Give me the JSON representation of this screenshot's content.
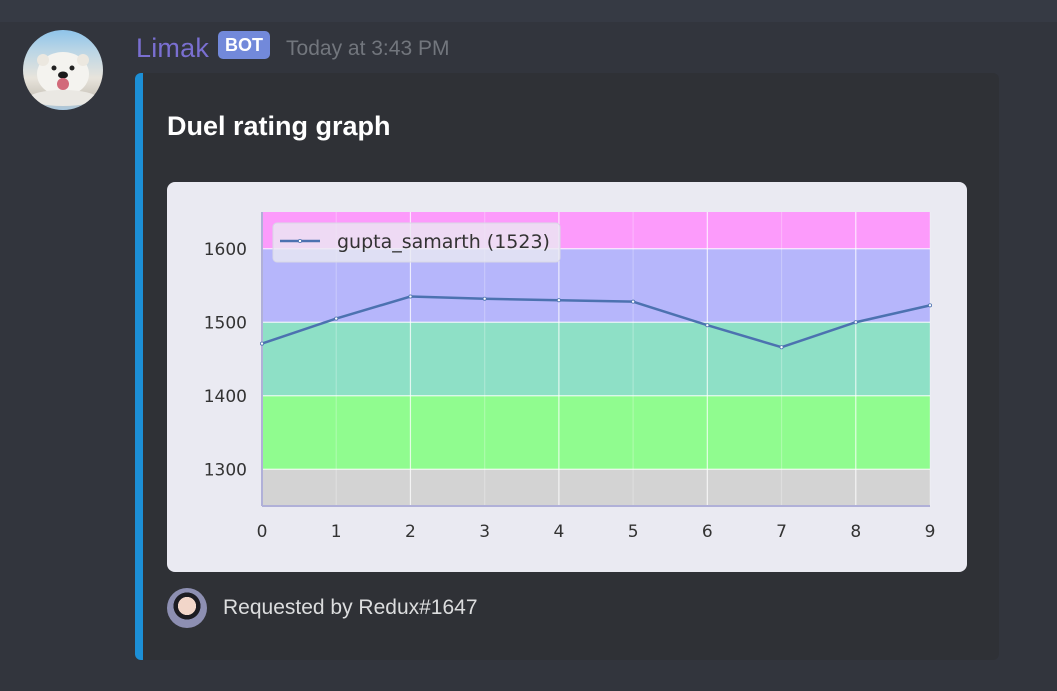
{
  "message": {
    "author": "Limak",
    "badge": "BOT",
    "timestamp": "Today at 3:43 PM",
    "avatar_icon": "polar-bear-avatar"
  },
  "embed": {
    "accent_color": "#1c8fd6",
    "title": "Duel rating graph",
    "footer": {
      "text": "Requested by Redux#1647",
      "icon": "user-avatar"
    }
  },
  "chart_data": {
    "type": "line",
    "title": "",
    "xlabel": "",
    "ylabel": "",
    "x": [
      0,
      1,
      2,
      3,
      4,
      5,
      6,
      7,
      8,
      9
    ],
    "series": [
      {
        "name": "gupta_samarth (1523)",
        "color": "#4c72b0",
        "values": [
          1471,
          1505,
          1535,
          1532,
          1530,
          1528,
          1496,
          1466,
          1500,
          1523
        ]
      }
    ],
    "xticks": [
      "0",
      "1",
      "2",
      "3",
      "4",
      "5",
      "6",
      "7",
      "8",
      "9"
    ],
    "yticks": [
      "1300",
      "1400",
      "1500",
      "1600"
    ],
    "xlim": [
      0,
      9
    ],
    "ylim": [
      1250,
      1650
    ],
    "grid": true,
    "legend_position": "upper left",
    "background_bands": [
      {
        "from": 1250,
        "to": 1300,
        "color": "#d3d3d3"
      },
      {
        "from": 1300,
        "to": 1400,
        "color": "#90fc8f"
      },
      {
        "from": 1400,
        "to": 1500,
        "color": "#8ee0c6"
      },
      {
        "from": 1500,
        "to": 1600,
        "color": "#b6b6fb"
      },
      {
        "from": 1600,
        "to": 1650,
        "color": "#fc9bfb"
      }
    ]
  }
}
